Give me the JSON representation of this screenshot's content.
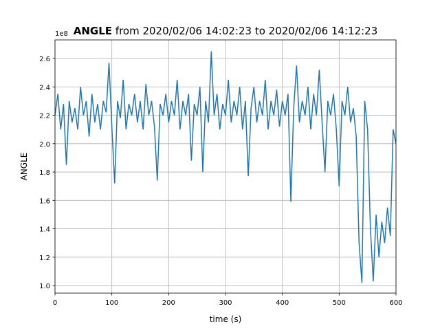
{
  "chart_data": {
    "type": "line",
    "title_bold": "ANGLE",
    "title_rest": "from 2020/02/06 14:02:23 to 2020/02/06 14:12:23",
    "xlabel": "time (s)",
    "ylabel": "ANGLE",
    "offset_text": "1e8",
    "xlim": [
      0,
      600
    ],
    "xticks": [
      0,
      100,
      200,
      300,
      400,
      500,
      600
    ],
    "ylim": [
      0.947,
      2.731
    ],
    "yticks": [
      {
        "value": 1,
        "label": "1.0"
      },
      1.2,
      1.4,
      1.6,
      1.8,
      {
        "value": 2,
        "label": "2.0"
      },
      2.2,
      2.4,
      2.6
    ],
    "grid": true,
    "series": [
      {
        "color": "#1f77b4",
        "x": [
          0,
          5,
          10,
          15,
          20,
          25,
          30,
          35,
          40,
          45,
          50,
          55,
          60,
          65,
          70,
          75,
          80,
          85,
          90,
          95,
          100,
          105,
          110,
          115,
          120,
          125,
          130,
          135,
          140,
          145,
          150,
          155,
          160,
          165,
          170,
          175,
          180,
          185,
          190,
          195,
          200,
          205,
          210,
          215,
          220,
          225,
          230,
          235,
          240,
          245,
          250,
          255,
          260,
          265,
          270,
          275,
          280,
          285,
          290,
          295,
          300,
          305,
          310,
          315,
          320,
          325,
          330,
          335,
          340,
          345,
          350,
          355,
          360,
          365,
          370,
          375,
          380,
          385,
          390,
          395,
          400,
          405,
          410,
          415,
          420,
          425,
          430,
          435,
          440,
          445,
          450,
          455,
          460,
          465,
          470,
          475,
          480,
          485,
          490,
          495,
          500,
          505,
          510,
          515,
          520,
          525,
          530,
          535,
          540,
          545,
          550,
          555,
          560,
          565,
          570,
          575,
          580,
          585,
          590,
          595,
          600
        ],
        "values": [
          2.2,
          2.35,
          2.1,
          2.28,
          1.85,
          2.3,
          2.15,
          2.25,
          2.1,
          2.4,
          2.2,
          2.3,
          2.05,
          2.35,
          2.15,
          2.28,
          2.1,
          2.3,
          2.22,
          2.57,
          2.12,
          1.72,
          2.3,
          2.18,
          2.45,
          2.1,
          2.28,
          2.2,
          2.35,
          2.15,
          2.3,
          2.1,
          2.42,
          2.2,
          2.3,
          2.12,
          1.74,
          2.28,
          2.2,
          2.35,
          2.15,
          2.3,
          2.2,
          2.45,
          2.1,
          2.3,
          2.2,
          2.35,
          1.88,
          2.28,
          2.2,
          2.4,
          1.8,
          2.3,
          2.15,
          2.65,
          2.2,
          2.35,
          2.1,
          2.28,
          2.2,
          2.45,
          2.15,
          2.3,
          2.2,
          2.4,
          2.1,
          2.3,
          1.77,
          2.25,
          2.4,
          2.15,
          2.3,
          2.2,
          2.45,
          2.1,
          2.3,
          2.2,
          2.38,
          2.12,
          2.3,
          2.2,
          2.35,
          1.59,
          2.25,
          2.55,
          2.15,
          2.3,
          2.2,
          2.4,
          2.1,
          2.35,
          2.2,
          2.52,
          2.15,
          1.8,
          2.3,
          2.2,
          2.35,
          2.1,
          1.7,
          2.3,
          2.2,
          2.4,
          2.15,
          2.25,
          2.05,
          1.3,
          1.02,
          2.3,
          2.1,
          1.4,
          1.03,
          1.5,
          1.2,
          1.45,
          1.3,
          1.55,
          1.35,
          2.1,
          2.0
        ]
      }
    ]
  }
}
